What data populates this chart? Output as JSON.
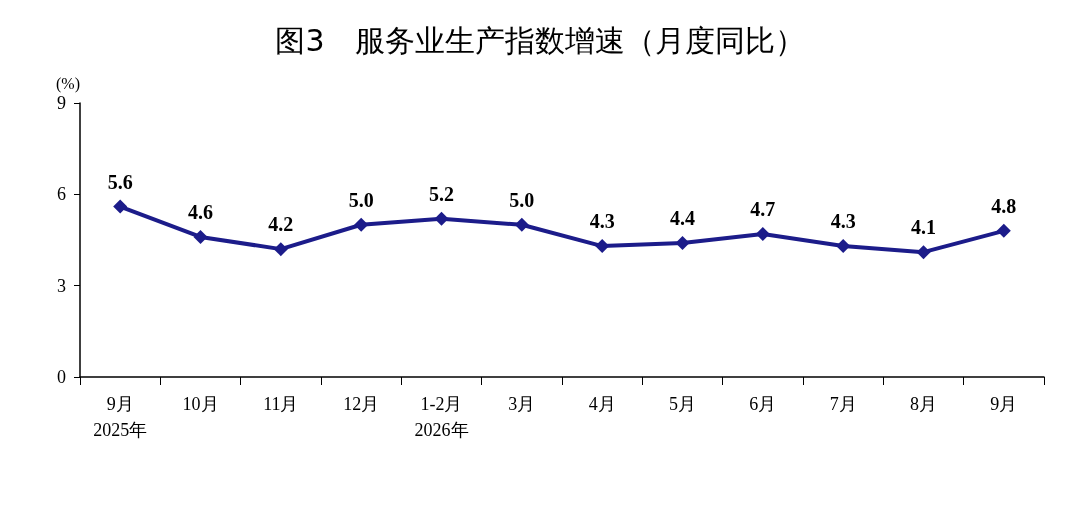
{
  "chart_data": {
    "type": "line",
    "title": "图3　服务业生产指数增速（月度同比）",
    "ylabel": "(%)",
    "categories": [
      "9月\n2025年",
      "10月",
      "11月",
      "12月",
      "1-2月\n2026年",
      "3月",
      "4月",
      "5月",
      "6月",
      "7月",
      "8月",
      "9月"
    ],
    "series": [
      {
        "color": "#1c1c8a",
        "values": [
          5.6,
          4.6,
          4.2,
          5.0,
          5.2,
          5.0,
          4.3,
          4.4,
          4.7,
          4.3,
          4.1,
          4.8
        ],
        "value_labels": [
          "5.6",
          "4.6",
          "4.2",
          "5.0",
          "5.2",
          "5.0",
          "4.3",
          "4.4",
          "4.7",
          "4.3",
          "4.1",
          "4.8"
        ]
      }
    ],
    "ylim": [
      0,
      9
    ],
    "yticks": [
      0,
      3,
      6,
      9
    ],
    "marker": "diamond",
    "line_style": "solid"
  }
}
